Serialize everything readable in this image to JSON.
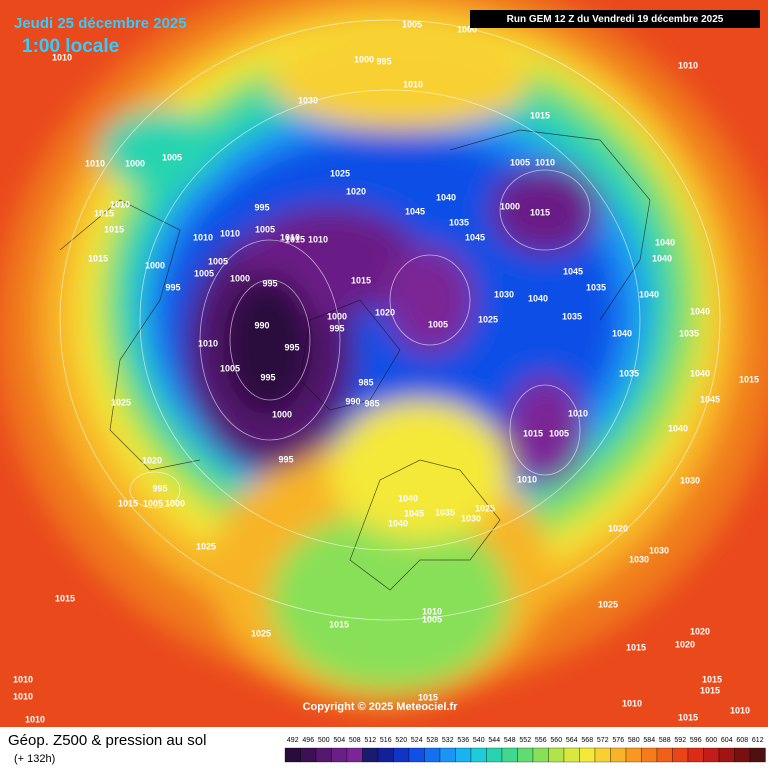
{
  "header": {
    "date": "Jeudi 25 décembre 2025",
    "time": "1:00 locale",
    "run": "Run GEM 12 Z du Vendredi 19 décembre 2025"
  },
  "copyright": "Copyright © 2025 Meteociel.fr",
  "footer": {
    "title": "Géop. Z500 & pression au sol",
    "lead": "(+ 132h)"
  },
  "scale": {
    "labels": [
      492,
      496,
      500,
      504,
      508,
      512,
      516,
      520,
      524,
      528,
      532,
      536,
      540,
      544,
      548,
      552,
      556,
      560,
      564,
      568,
      572,
      576,
      580,
      584,
      588,
      592,
      596,
      600,
      604,
      608,
      612
    ],
    "colors": [
      "#2b0a3d",
      "#3d0f55",
      "#54186e",
      "#6a1f86",
      "#7c2596",
      "#1a1a6e",
      "#14209a",
      "#1034c8",
      "#1050e6",
      "#1470f0",
      "#1a94f5",
      "#18b4f0",
      "#1cccd8",
      "#28d4b0",
      "#40d890",
      "#60dc70",
      "#88e058",
      "#b0e448",
      "#d8e840",
      "#f4e838",
      "#f8d030",
      "#f8b428",
      "#f89820",
      "#f47c1c",
      "#f06018",
      "#ea4418",
      "#dc2c18",
      "#c41c18",
      "#a01414",
      "#781010",
      "#501010"
    ]
  },
  "pressure_labels": [
    "1005",
    "1000",
    "1010",
    "1000",
    "995",
    "1010",
    "1010",
    "1030",
    "1015",
    "1010",
    "1000",
    "1005",
    "1025",
    "1005",
    "1010",
    "1020",
    "1040",
    "1010",
    "1015",
    "995",
    "1015",
    "1005",
    "1010",
    "1010",
    "1010",
    "1015",
    "1010",
    "1045",
    "1035",
    "1045",
    "1000",
    "1015",
    "1040",
    "1015",
    "1000",
    "1005",
    "1005",
    "1000",
    "995",
    "1015",
    "1045",
    "1040",
    "995",
    "1035",
    "1030",
    "1040",
    "1040",
    "990",
    "1000",
    "995",
    "1020",
    "1005",
    "1025",
    "1035",
    "1040",
    "1035",
    "1040",
    "1010",
    "995",
    "1005",
    "995",
    "985",
    "1035",
    "1040",
    "1015",
    "990",
    "985",
    "1025",
    "1045",
    "1000",
    "1010",
    "1015",
    "1005",
    "1040",
    "1020",
    "995",
    "1030",
    "995",
    "1015",
    "1005",
    "1000",
    "1010",
    "1040",
    "1045",
    "1035",
    "1025",
    "1040",
    "1030",
    "1020",
    "1025",
    "1030",
    "1030",
    "1015",
    "1025",
    "1010",
    "1005",
    "1015",
    "1025",
    "1020",
    "1015",
    "1020",
    "1010",
    "1010",
    "1015",
    "1015",
    "1015",
    "1010",
    "1010",
    "1015",
    "1010"
  ]
}
